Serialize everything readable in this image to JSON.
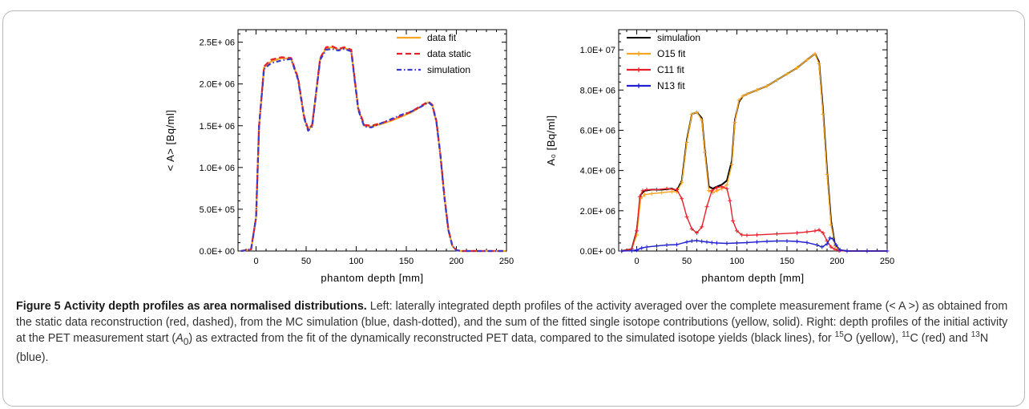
{
  "caption": {
    "figure_label": "Figure 5",
    "title": "Activity depth profiles as area normalised distributions.",
    "body_1": "Left: laterally integrated depth profiles of the activity averaged over the complete measurement frame (< A >) as obtained from the static data reconstruction (red, dashed), from the MC simulation (blue, dash-dotted), and the sum of the fitted single isotope contributions (yellow, solid). Right: depth profiles of the initial activity at the PET measurement start (",
    "body_a0": "A",
    "body_a0_sub": "0",
    "body_2": ") as extracted from the fit of the dynamically reconstructed PET data, compared to the simulated isotope yields (black lines), for ",
    "iso_o15_mass": "15",
    "iso_o15_sym": "O (yellow), ",
    "iso_c11_mass": "11",
    "iso_c11_sym": "C (red) and ",
    "iso_n13_mass": "13",
    "iso_n13_sym": "N (blue)."
  },
  "chart_data": [
    {
      "type": "line",
      "xlabel": "phantom depth [mm]",
      "ylabel": "< A>  [Bq/ml]",
      "xlim": [
        -18,
        250
      ],
      "ylim": [
        0,
        2650000
      ],
      "xticks": [
        "0",
        "50",
        "100",
        "150",
        "200",
        "250"
      ],
      "yticks": [
        "0.0E+ 00",
        "5.0E+ 05",
        "1.0E+ 06",
        "1.5E+ 06",
        "2.0E+ 06",
        "2.5E+ 06"
      ],
      "legend_position": "top-right",
      "series": [
        {
          "name": "data fit",
          "color": "#f5a623",
          "style": "solid",
          "x": [
            -15,
            -5,
            0,
            3,
            8,
            15,
            25,
            35,
            42,
            48,
            52,
            56,
            60,
            64,
            70,
            76,
            82,
            88,
            95,
            98,
            102,
            108,
            115,
            125,
            135,
            145,
            155,
            165,
            172,
            176,
            180,
            184,
            188,
            192,
            196,
            200,
            205,
            215,
            230,
            250
          ],
          "y": [
            0,
            20000,
            400000,
            1500000,
            2200000,
            2270000,
            2310000,
            2300000,
            2060000,
            1600000,
            1450000,
            1500000,
            1900000,
            2300000,
            2430000,
            2440000,
            2410000,
            2430000,
            2400000,
            2100000,
            1700000,
            1500000,
            1490000,
            1520000,
            1560000,
            1610000,
            1660000,
            1730000,
            1780000,
            1740000,
            1550000,
            1150000,
            650000,
            250000,
            60000,
            10000,
            0,
            0,
            0,
            0
          ]
        },
        {
          "name": "data static",
          "color": "#e8202a",
          "style": "dashed",
          "x": [
            -15,
            -5,
            0,
            3,
            8,
            15,
            25,
            35,
            42,
            48,
            52,
            56,
            60,
            64,
            70,
            76,
            82,
            88,
            95,
            98,
            102,
            108,
            115,
            125,
            135,
            145,
            155,
            165,
            172,
            176,
            180,
            184,
            188,
            192,
            196,
            200,
            205,
            215,
            230,
            250
          ],
          "y": [
            0,
            20000,
            400000,
            1500000,
            2210000,
            2290000,
            2320000,
            2310000,
            2070000,
            1610000,
            1460000,
            1510000,
            1910000,
            2310000,
            2440000,
            2450000,
            2420000,
            2440000,
            2410000,
            2110000,
            1710000,
            1510000,
            1500000,
            1530000,
            1570000,
            1620000,
            1670000,
            1740000,
            1790000,
            1750000,
            1560000,
            1160000,
            660000,
            260000,
            60000,
            10000,
            0,
            0,
            0,
            0
          ]
        },
        {
          "name": "simulation",
          "color": "#3a3acc",
          "style": "dashdot",
          "x": [
            -15,
            -5,
            0,
            3,
            8,
            15,
            25,
            35,
            42,
            48,
            52,
            56,
            60,
            64,
            70,
            76,
            82,
            88,
            95,
            98,
            102,
            108,
            115,
            125,
            135,
            145,
            155,
            165,
            172,
            176,
            180,
            184,
            188,
            192,
            196,
            200,
            205,
            215,
            230,
            250
          ],
          "y": [
            0,
            20000,
            400000,
            1500000,
            2180000,
            2250000,
            2280000,
            2300000,
            2050000,
            1590000,
            1440000,
            1490000,
            1890000,
            2290000,
            2410000,
            2420000,
            2400000,
            2420000,
            2390000,
            2090000,
            1690000,
            1490000,
            1480000,
            1530000,
            1580000,
            1630000,
            1670000,
            1730000,
            1780000,
            1740000,
            1550000,
            1150000,
            640000,
            250000,
            60000,
            10000,
            0,
            0,
            0,
            0
          ]
        }
      ]
    },
    {
      "type": "line",
      "xlabel": "phantom depth [mm]",
      "ylabel": "A₀ [Bq/ml]",
      "xlim": [
        -18,
        250
      ],
      "ylim": [
        0,
        11000000
      ],
      "xticks": [
        "0",
        "50",
        "100",
        "150",
        "200",
        "250"
      ],
      "yticks": [
        "0.0E+ 00",
        "2.0E+ 06",
        "4.0E+ 06",
        "6.0E+ 06",
        "8.0E+ 06",
        "1.0E+ 07"
      ],
      "legend_position": "top-left",
      "series": [
        {
          "name": "simulation",
          "color": "#000000",
          "style": "solid",
          "width": 2,
          "x": [
            -15,
            -5,
            0,
            4,
            8,
            15,
            25,
            35,
            40,
            45,
            50,
            55,
            60,
            65,
            68,
            72,
            76,
            80,
            85,
            90,
            95,
            98,
            102,
            106,
            110,
            120,
            130,
            140,
            150,
            160,
            170,
            178,
            182,
            186,
            190,
            194,
            198,
            202,
            210,
            230,
            250
          ],
          "y": [
            0,
            100000,
            1000000,
            2800000,
            3000000,
            3050000,
            3050000,
            3100000,
            3000000,
            3500000,
            5500000,
            6800000,
            6900000,
            6600000,
            5000000,
            3200000,
            3100000,
            3200000,
            3300000,
            3500000,
            4500000,
            6500000,
            7400000,
            7700000,
            7800000,
            8000000,
            8200000,
            8500000,
            8800000,
            9100000,
            9500000,
            9800000,
            9400000,
            7000000,
            4000000,
            1500000,
            300000,
            50000,
            0,
            0,
            0
          ]
        },
        {
          "name": "O15 fit",
          "color": "#f5a623",
          "style": "solid",
          "marker": "plus",
          "x": [
            -15,
            -5,
            0,
            4,
            8,
            15,
            25,
            35,
            40,
            45,
            50,
            55,
            60,
            65,
            68,
            72,
            76,
            80,
            85,
            90,
            95,
            98,
            102,
            106,
            110,
            120,
            130,
            140,
            150,
            160,
            170,
            178,
            182,
            186,
            190,
            194,
            198,
            202,
            210,
            230,
            250
          ],
          "y": [
            0,
            100000,
            800000,
            2600000,
            2800000,
            2850000,
            2900000,
            2950000,
            2950000,
            3400000,
            5400000,
            6800000,
            6900000,
            6500000,
            4900000,
            3000000,
            2900000,
            3000000,
            3100000,
            3300000,
            4300000,
            6400000,
            7500000,
            7700000,
            7800000,
            8000000,
            8200000,
            8500000,
            8800000,
            9100000,
            9500000,
            9800000,
            9300000,
            6800000,
            3800000,
            1300000,
            250000,
            40000,
            0,
            0,
            0
          ]
        },
        {
          "name": "C11 fit",
          "color": "#e8202a",
          "style": "solid",
          "marker": "plus",
          "x": [
            -15,
            -5,
            0,
            3,
            6,
            10,
            20,
            30,
            40,
            45,
            50,
            55,
            60,
            65,
            70,
            75,
            80,
            85,
            90,
            93,
            96,
            100,
            105,
            110,
            120,
            140,
            160,
            170,
            178,
            182,
            186,
            190,
            194,
            198,
            202,
            210,
            230,
            250
          ],
          "y": [
            0,
            100000,
            1000000,
            2700000,
            3000000,
            3050000,
            3050000,
            3100000,
            3050000,
            2600000,
            1700000,
            1100000,
            900000,
            1200000,
            2200000,
            3000000,
            3150000,
            3200000,
            3100000,
            2500000,
            1500000,
            1000000,
            800000,
            780000,
            800000,
            850000,
            900000,
            950000,
            1000000,
            1050000,
            900000,
            500000,
            200000,
            80000,
            20000,
            0,
            0,
            0
          ]
        },
        {
          "name": "N13 fit",
          "color": "#2020d0",
          "style": "solid",
          "marker": "plus",
          "x": [
            -15,
            -5,
            0,
            5,
            10,
            20,
            30,
            40,
            50,
            55,
            60,
            65,
            70,
            75,
            80,
            90,
            100,
            110,
            120,
            130,
            140,
            150,
            160,
            170,
            180,
            185,
            190,
            193,
            196,
            199,
            203,
            210,
            230,
            250
          ],
          "y": [
            0,
            10000,
            50000,
            150000,
            200000,
            250000,
            300000,
            320000,
            450000,
            500000,
            520000,
            480000,
            450000,
            420000,
            400000,
            380000,
            400000,
            420000,
            450000,
            480000,
            500000,
            500000,
            480000,
            420000,
            300000,
            200000,
            350000,
            650000,
            600000,
            300000,
            50000,
            0,
            0,
            0
          ]
        }
      ]
    }
  ]
}
